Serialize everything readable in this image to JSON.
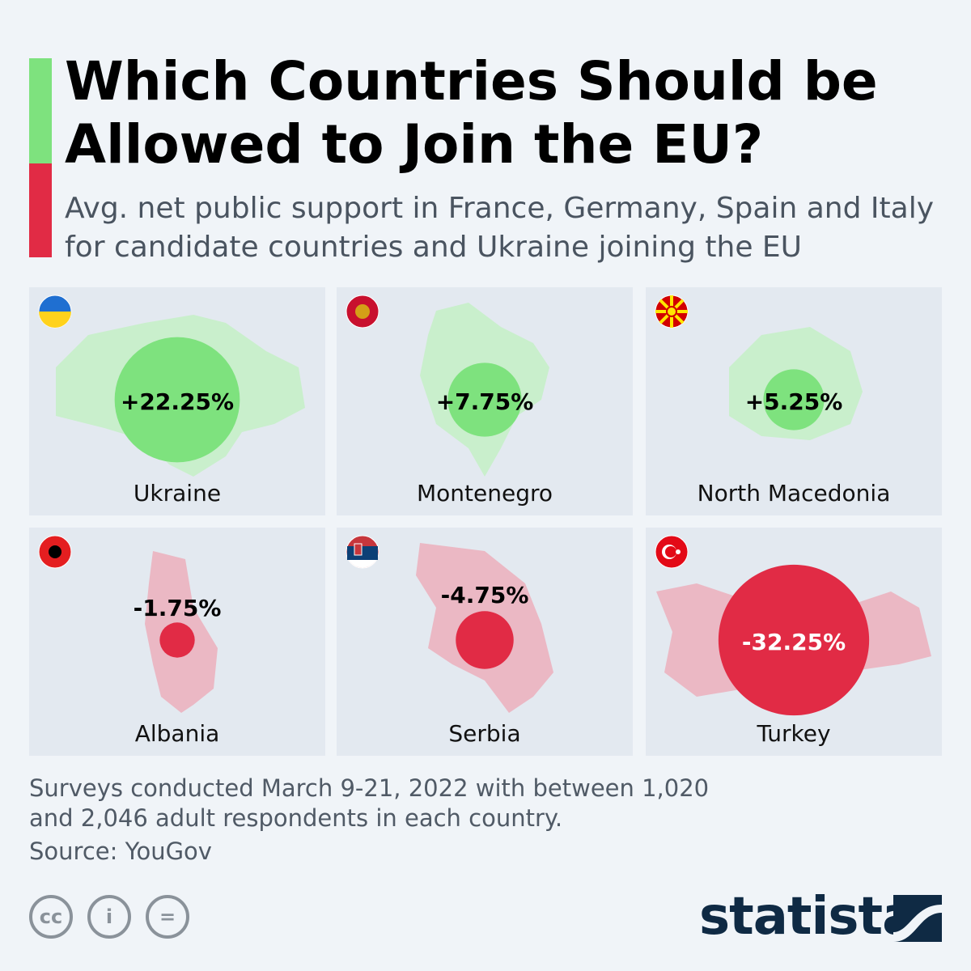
{
  "title": "Which Countries Should be Allowed to Join the EU?",
  "subtitle": "Avg. net public support in France, Germany, Spain and Italy for candidate countries and Ukraine joining the EU",
  "colors": {
    "positive": "#7ee27e",
    "positive_map": "#c9efcc",
    "negative": "#e12b45",
    "negative_map": "#ebb8c4",
    "panel": "#e3e9f0",
    "background": "#f0f4f8",
    "accent_green": "#7ee27e",
    "accent_red": "#e12b45"
  },
  "chart_data": {
    "type": "bubble",
    "title": "Which Countries Should be Allowed to Join the EU?",
    "unit": "%",
    "categories": [
      "Ukraine",
      "Montenegro",
      "North Macedonia",
      "Albania",
      "Serbia",
      "Turkey"
    ],
    "values": [
      22.25,
      7.75,
      5.25,
      -1.75,
      -4.75,
      -32.25
    ],
    "labels": [
      "+22.25%",
      "+7.75%",
      "+5.25%",
      "-1.75%",
      "-4.75%",
      "-32.25%"
    ],
    "flags": [
      "ukraine-flag",
      "montenegro-flag",
      "north-macedonia-flag",
      "albania-flag",
      "serbia-flag",
      "turkey-flag"
    ]
  },
  "footer": {
    "note": "Surveys conducted March 9-21, 2022 with between 1,020 and 2,046 adult respondents in each country.",
    "source": "Source: YouGov",
    "license_icons": [
      "creative-commons-icon",
      "attribution-icon",
      "no-derivatives-icon"
    ],
    "logo": "statista"
  }
}
